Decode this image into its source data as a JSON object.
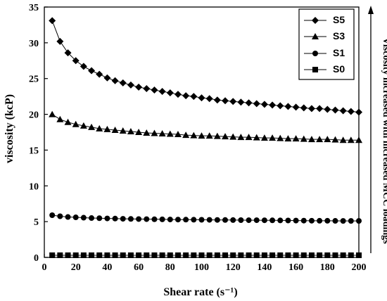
{
  "chart_data": {
    "type": "line",
    "xlabel": "Shear rate (s⁻¹)",
    "ylabel": "viscosity (kcP)",
    "xlim": [
      0,
      200
    ],
    "ylim": [
      0,
      35
    ],
    "xticks": [
      0,
      20,
      40,
      60,
      80,
      100,
      120,
      140,
      160,
      180,
      200
    ],
    "yticks": [
      0,
      5,
      10,
      15,
      20,
      25,
      30,
      35
    ],
    "grid": false,
    "legend": {
      "placement": "top-right",
      "entries": [
        "S5",
        "S3",
        "S1",
        "S0"
      ]
    },
    "annotation": "Viscosity increased with increased MCC loadings",
    "x": [
      5,
      10,
      15,
      20,
      25,
      30,
      35,
      40,
      45,
      50,
      55,
      60,
      65,
      70,
      75,
      80,
      85,
      90,
      95,
      100,
      105,
      110,
      115,
      120,
      125,
      130,
      135,
      140,
      145,
      150,
      155,
      160,
      165,
      170,
      175,
      180,
      185,
      190,
      195,
      200
    ],
    "series": [
      {
        "name": "S5",
        "marker": "diamond",
        "values": [
          33.1,
          30.2,
          28.6,
          27.5,
          26.7,
          26.1,
          25.6,
          25.1,
          24.7,
          24.4,
          24.1,
          23.8,
          23.6,
          23.4,
          23.2,
          23.0,
          22.8,
          22.6,
          22.5,
          22.3,
          22.2,
          22.0,
          21.9,
          21.8,
          21.7,
          21.6,
          21.5,
          21.4,
          21.3,
          21.2,
          21.1,
          21.0,
          20.9,
          20.8,
          20.8,
          20.7,
          20.6,
          20.5,
          20.4,
          20.3
        ]
      },
      {
        "name": "S3",
        "marker": "triangle",
        "values": [
          20.0,
          19.3,
          18.9,
          18.6,
          18.4,
          18.2,
          18.0,
          17.9,
          17.8,
          17.7,
          17.6,
          17.5,
          17.4,
          17.35,
          17.3,
          17.25,
          17.2,
          17.1,
          17.05,
          17.0,
          17.0,
          16.95,
          16.9,
          16.85,
          16.8,
          16.8,
          16.75,
          16.7,
          16.7,
          16.65,
          16.6,
          16.6,
          16.55,
          16.5,
          16.5,
          16.5,
          16.45,
          16.4,
          16.4,
          16.4
        ]
      },
      {
        "name": "S1",
        "marker": "circle",
        "values": [
          5.9,
          5.75,
          5.65,
          5.6,
          5.55,
          5.5,
          5.48,
          5.45,
          5.43,
          5.4,
          5.38,
          5.36,
          5.35,
          5.33,
          5.32,
          5.3,
          5.29,
          5.28,
          5.27,
          5.26,
          5.25,
          5.24,
          5.23,
          5.22,
          5.21,
          5.2,
          5.2,
          5.19,
          5.18,
          5.17,
          5.16,
          5.15,
          5.14,
          5.13,
          5.12,
          5.12,
          5.11,
          5.1,
          5.1,
          5.1
        ]
      },
      {
        "name": "S0",
        "marker": "square",
        "values": [
          0.3,
          0.3,
          0.3,
          0.3,
          0.3,
          0.3,
          0.3,
          0.3,
          0.3,
          0.3,
          0.3,
          0.3,
          0.3,
          0.3,
          0.3,
          0.3,
          0.3,
          0.3,
          0.3,
          0.3,
          0.3,
          0.3,
          0.3,
          0.3,
          0.3,
          0.3,
          0.3,
          0.3,
          0.3,
          0.3,
          0.3,
          0.3,
          0.3,
          0.3,
          0.3,
          0.3,
          0.3,
          0.3,
          0.3,
          0.3
        ]
      }
    ]
  }
}
